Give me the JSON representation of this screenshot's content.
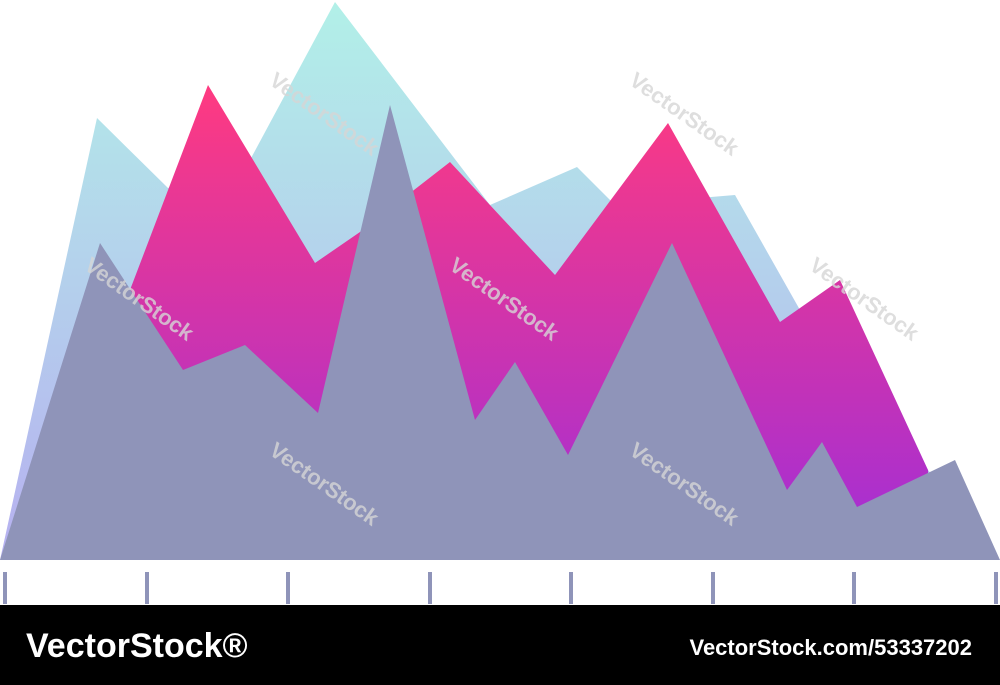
{
  "chart_data": {
    "type": "area",
    "xlim": [
      0,
      1000
    ],
    "ylim": [
      0,
      560
    ],
    "xticks": [
      5,
      147,
      288,
      430,
      571,
      713,
      854,
      996
    ],
    "series": [
      {
        "color": "#b3dce9",
        "x": [
          0,
          97,
          168,
          250,
          335,
          490,
          577,
          615,
          735,
          800,
          1000
        ],
        "values": [
          0,
          442,
          372,
          400,
          558,
          355,
          393,
          355,
          365,
          250,
          0
        ]
      },
      {
        "color": "#d2338f",
        "x": [
          130,
          208,
          315,
          360,
          450,
          555,
          668,
          780,
          840,
          928
        ],
        "values": [
          270,
          475,
          297,
          328,
          398,
          285,
          437,
          238,
          280,
          90
        ]
      },
      {
        "color": "#8f94b9",
        "x": [
          0,
          100,
          183,
          245,
          318,
          390,
          475,
          515,
          568,
          672,
          787,
          822,
          857,
          955,
          1000
        ],
        "values": [
          0,
          317,
          190,
          215,
          147,
          455,
          140,
          198,
          105,
          317,
          70,
          118,
          53,
          100,
          0
        ]
      }
    ]
  },
  "watermark": "VectorStock",
  "footer": {
    "brand": "VectorStock®",
    "id": "VectorStock.com/53337202"
  }
}
